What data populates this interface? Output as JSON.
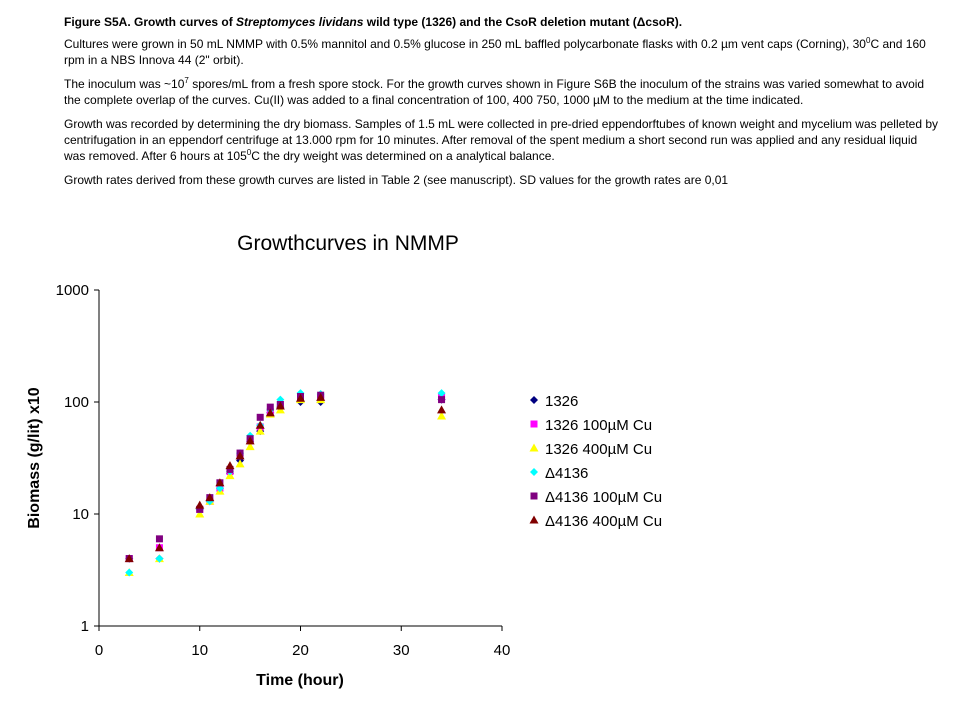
{
  "document": {
    "caption": {
      "prefix": "Figure S5A. Growth curves of ",
      "species": "Streptomyces lividans",
      "suffix": " wild type (1326) and the CsoR deletion mutant (ΔcsoR)."
    },
    "para1": {
      "a": "Cultures were grown in 50 mL NMMP with 0.5% mannitol and 0.5% glucose in 250 mL baffled polycarbonate flasks with 0.2 µm vent caps (Corning), 30",
      "sup": "0",
      "b": "C and 160 rpm in a NBS Innova 44 (2\" orbit)."
    },
    "para2": {
      "a": "The inoculum was ~10",
      "sup": "7",
      "b": " spores/mL from a fresh spore stock. For the growth curves shown in Figure S6B the inoculum of the strains was varied somewhat to avoid the complete overlap of the curves. Cu(II) was added to a final concentration of 100, 400 750, 1000 µM to the medium at the time indicated."
    },
    "para3": {
      "a": "Growth was recorded by determining the dry biomass. Samples of 1.5 mL were collected in pre-dried eppendorftubes of known weight and mycelium was pelleted by centrifugation in an eppendorf centrifuge at 13.000 rpm for 10 minutes. After removal of the spent medium a short second run was applied and any residual liquid was removed. After 6 hours at 105",
      "sup": "0",
      "b": "C the dry weight was determined on a analytical balance."
    },
    "para4": "Growth rates derived from these growth curves are listed in Table 2 (see manuscript). SD values for the growth rates are 0,01"
  },
  "chart_data": {
    "type": "scatter",
    "title": "Growthcurves in NMMP",
    "xlabel": "Time (hour)",
    "ylabel": "Biomass (g/lit) x10",
    "xlim": [
      0,
      40
    ],
    "ylim": [
      1,
      1000
    ],
    "yscale": "log",
    "xticks": [
      "0",
      "10",
      "20",
      "30",
      "40"
    ],
    "yticks": [
      "1",
      "10",
      "100",
      "1000"
    ],
    "grid": false,
    "legend_position": "right",
    "series": [
      {
        "name": "1326",
        "marker": "diamond",
        "color": "#000080",
        "points": [
          [
            3,
            4
          ],
          [
            6,
            4
          ],
          [
            10,
            11
          ],
          [
            11,
            13
          ],
          [
            12,
            17
          ],
          [
            13,
            23
          ],
          [
            14,
            30
          ],
          [
            15,
            44
          ],
          [
            16,
            55
          ],
          [
            17,
            80
          ],
          [
            18,
            90
          ],
          [
            20,
            100
          ],
          [
            22,
            100
          ],
          [
            34,
            105
          ]
        ]
      },
      {
        "name": "1326 100µM Cu",
        "marker": "square",
        "color": "#ff00ff",
        "points": [
          [
            3,
            4
          ],
          [
            6,
            5
          ],
          [
            10,
            11
          ],
          [
            11,
            13
          ],
          [
            12,
            17
          ],
          [
            13,
            24
          ],
          [
            14,
            33
          ],
          [
            15,
            45
          ],
          [
            16,
            60
          ],
          [
            17,
            82
          ],
          [
            18,
            95
          ],
          [
            20,
            110
          ],
          [
            22,
            110
          ],
          [
            34,
            110
          ]
        ]
      },
      {
        "name": "1326 400µM Cu",
        "marker": "triangle",
        "color": "#ffff00",
        "points": [
          [
            3,
            3
          ],
          [
            6,
            4
          ],
          [
            10,
            10
          ],
          [
            11,
            13
          ],
          [
            12,
            16
          ],
          [
            13,
            22
          ],
          [
            14,
            28
          ],
          [
            15,
            40
          ],
          [
            16,
            55
          ],
          [
            17,
            78
          ],
          [
            18,
            85
          ],
          [
            20,
            105
          ],
          [
            22,
            105
          ],
          [
            34,
            75
          ]
        ]
      },
      {
        "name": "Δ4136",
        "marker": "diamond",
        "color": "#00ffff",
        "points": [
          [
            3,
            3
          ],
          [
            6,
            4
          ],
          [
            10,
            11
          ],
          [
            11,
            13
          ],
          [
            12,
            17
          ],
          [
            13,
            24
          ],
          [
            14,
            35
          ],
          [
            15,
            50
          ],
          [
            16,
            62
          ],
          [
            17,
            85
          ],
          [
            18,
            105
          ],
          [
            20,
            120
          ],
          [
            22,
            118
          ],
          [
            34,
            120
          ]
        ]
      },
      {
        "name": "Δ4136 100µM Cu",
        "marker": "square",
        "color": "#800080",
        "points": [
          [
            3,
            4
          ],
          [
            6,
            6
          ],
          [
            10,
            11
          ],
          [
            11,
            14
          ],
          [
            12,
            19
          ],
          [
            13,
            25
          ],
          [
            14,
            35
          ],
          [
            15,
            47
          ],
          [
            16,
            73
          ],
          [
            17,
            90
          ],
          [
            18,
            95
          ],
          [
            20,
            112
          ],
          [
            22,
            115
          ],
          [
            34,
            105
          ]
        ]
      },
      {
        "name": "Δ4136 400µM Cu",
        "marker": "triangle",
        "color": "#800000",
        "points": [
          [
            3,
            4
          ],
          [
            6,
            5
          ],
          [
            10,
            12
          ],
          [
            11,
            14
          ],
          [
            12,
            19
          ],
          [
            13,
            27
          ],
          [
            14,
            33
          ],
          [
            15,
            45
          ],
          [
            16,
            62
          ],
          [
            17,
            80
          ],
          [
            18,
            92
          ],
          [
            20,
            108
          ],
          [
            22,
            110
          ],
          [
            34,
            85
          ]
        ]
      }
    ]
  }
}
